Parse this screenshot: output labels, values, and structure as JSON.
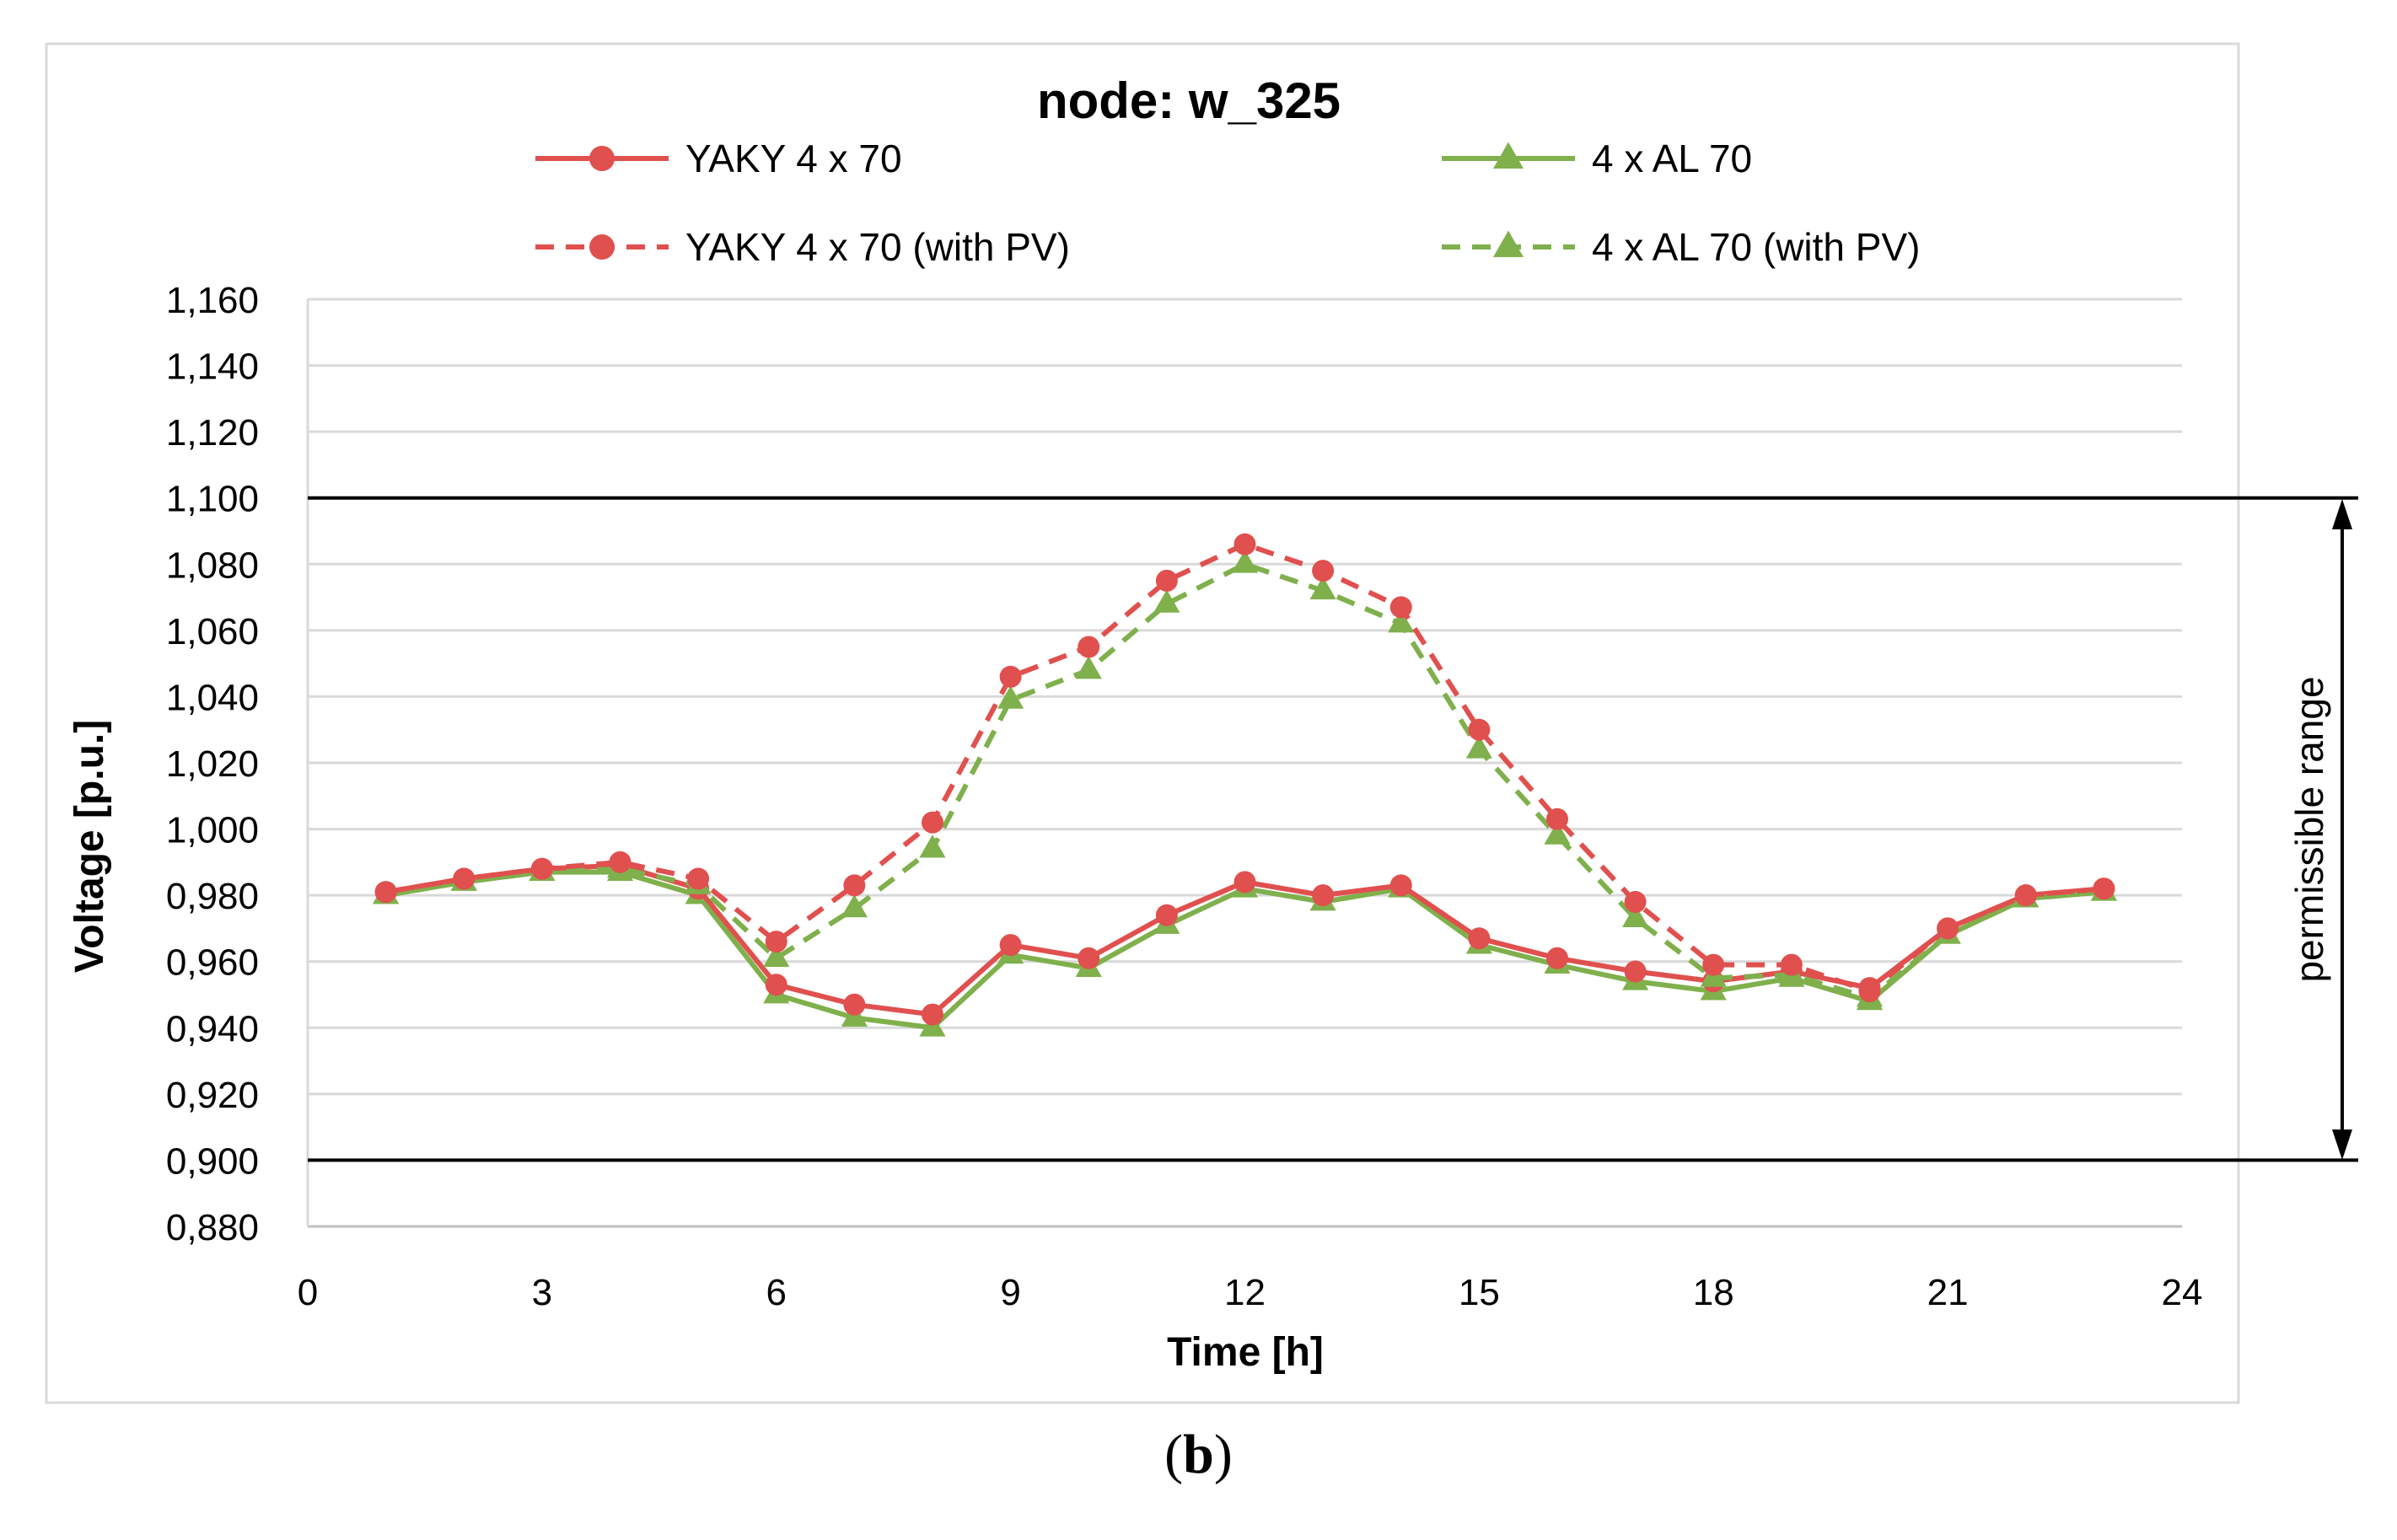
{
  "chart_data": {
    "type": "line",
    "title": "node: w_325",
    "xlabel": "Time [h]",
    "ylabel": "Voltage [p.u.]",
    "xlim": [
      0,
      24
    ],
    "ylim": [
      0.88,
      1.16
    ],
    "x_ticks": [
      "0",
      "3",
      "6",
      "9",
      "12",
      "15",
      "18",
      "21",
      "24"
    ],
    "y_ticks": [
      "0,880",
      "0,900",
      "0,920",
      "0,940",
      "0,960",
      "0,980",
      "1,000",
      "1,020",
      "1,040",
      "1,060",
      "1,080",
      "1,100",
      "1,120",
      "1,140",
      "1,160"
    ],
    "x": [
      1,
      2,
      3,
      4,
      5,
      6,
      7,
      8,
      9,
      10,
      11,
      12,
      13,
      14,
      15,
      16,
      17,
      18,
      19,
      20,
      21,
      22,
      23
    ],
    "series": [
      {
        "name": "YAKY 4 x 70",
        "color": "#e0504e",
        "dash": "solid",
        "marker": "circle",
        "values": [
          0.981,
          0.985,
          0.988,
          0.989,
          0.982,
          0.953,
          0.947,
          0.944,
          0.965,
          0.961,
          0.974,
          0.984,
          0.98,
          0.983,
          0.967,
          0.961,
          0.957,
          0.954,
          0.957,
          0.952,
          0.97,
          0.98,
          0.982
        ]
      },
      {
        "name": "4 x AL 70",
        "color": "#7fb04c",
        "dash": "solid",
        "marker": "triangle",
        "values": [
          0.98,
          0.984,
          0.987,
          0.987,
          0.98,
          0.95,
          0.943,
          0.94,
          0.962,
          0.958,
          0.971,
          0.982,
          0.978,
          0.982,
          0.965,
          0.959,
          0.954,
          0.951,
          0.955,
          0.948,
          0.968,
          0.979,
          0.981
        ]
      },
      {
        "name": "YAKY 4 x 70 (with PV)",
        "color": "#e0504e",
        "dash": "dashed",
        "marker": "circle",
        "values": [
          0.981,
          0.985,
          0.988,
          0.99,
          0.985,
          0.966,
          0.983,
          1.002,
          1.046,
          1.055,
          1.075,
          1.086,
          1.078,
          1.067,
          1.03,
          1.003,
          0.978,
          0.959,
          0.959,
          0.951,
          0.97,
          0.98,
          0.982
        ]
      },
      {
        "name": "4 x AL 70 (with PV)",
        "color": "#7fb04c",
        "dash": "dashed",
        "marker": "triangle",
        "values": [
          0.98,
          0.984,
          0.987,
          0.988,
          0.983,
          0.961,
          0.976,
          0.994,
          1.039,
          1.048,
          1.068,
          1.08,
          1.072,
          1.062,
          1.024,
          0.998,
          0.973,
          0.955,
          0.956,
          0.949,
          0.968,
          0.979,
          0.981
        ]
      }
    ],
    "limits": {
      "upper": 1.1,
      "lower": 0.9
    },
    "annotation": "permissible range",
    "legend_position": "top"
  },
  "caption": {
    "open": "(",
    "letter": "b",
    "close": ")"
  }
}
